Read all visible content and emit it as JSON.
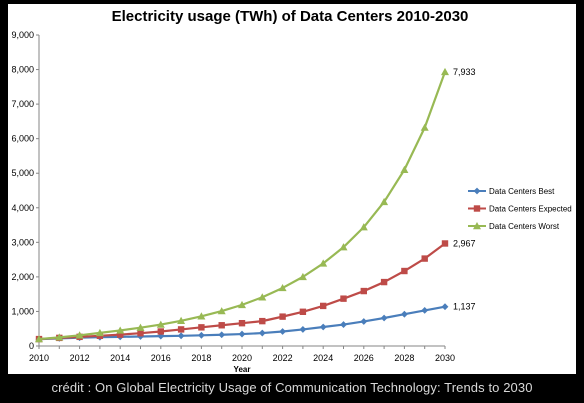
{
  "credit": "crédit :  On Global Electricity Usage of Communication Technology: Trends to 2030",
  "chart_data": {
    "type": "line",
    "title": "Electricity usage (TWh) of Data Centers 2010-2030",
    "xlabel": "Year",
    "ylabel": "",
    "xlim": [
      2010,
      2030
    ],
    "ylim": [
      0,
      9000
    ],
    "x_ticks": [
      2010,
      2012,
      2014,
      2016,
      2018,
      2020,
      2022,
      2024,
      2026,
      2028,
      2030
    ],
    "y_ticks": [
      0,
      1000,
      2000,
      3000,
      4000,
      5000,
      6000,
      7000,
      8000,
      9000
    ],
    "y_tick_labels": [
      "0",
      "1,000",
      "2,000",
      "3,000",
      "4,000",
      "5,000",
      "6,000",
      "7,000",
      "8,000",
      "9,000"
    ],
    "grid": false,
    "legend_position": "right",
    "x": [
      2010,
      2011,
      2012,
      2013,
      2014,
      2015,
      2016,
      2017,
      2018,
      2019,
      2020,
      2021,
      2022,
      2023,
      2024,
      2025,
      2026,
      2027,
      2028,
      2029,
      2030
    ],
    "series": [
      {
        "name": "Data Centers Best",
        "color": "#4a7ebb",
        "marker": "diamond",
        "values": [
          200,
          220,
          240,
          255,
          265,
          275,
          285,
          295,
          310,
          325,
          345,
          375,
          420,
          480,
          550,
          620,
          710,
          810,
          920,
          1030,
          1137
        ],
        "end_label": "1,137"
      },
      {
        "name": "Data Centers Expected",
        "color": "#be4b48",
        "marker": "square",
        "values": [
          200,
          235,
          265,
          295,
          330,
          370,
          420,
          480,
          540,
          600,
          660,
          720,
          850,
          990,
          1160,
          1370,
          1590,
          1850,
          2170,
          2530,
          2967
        ],
        "end_label": "2,967"
      },
      {
        "name": "Data Centers Worst",
        "color": "#98b954",
        "marker": "triangle",
        "values": [
          200,
          250,
          310,
          380,
          450,
          530,
          620,
          730,
          860,
          1010,
          1190,
          1410,
          1680,
          2000,
          2390,
          2860,
          3440,
          4170,
          5100,
          6320,
          7933
        ],
        "end_label": "7,933"
      }
    ]
  }
}
